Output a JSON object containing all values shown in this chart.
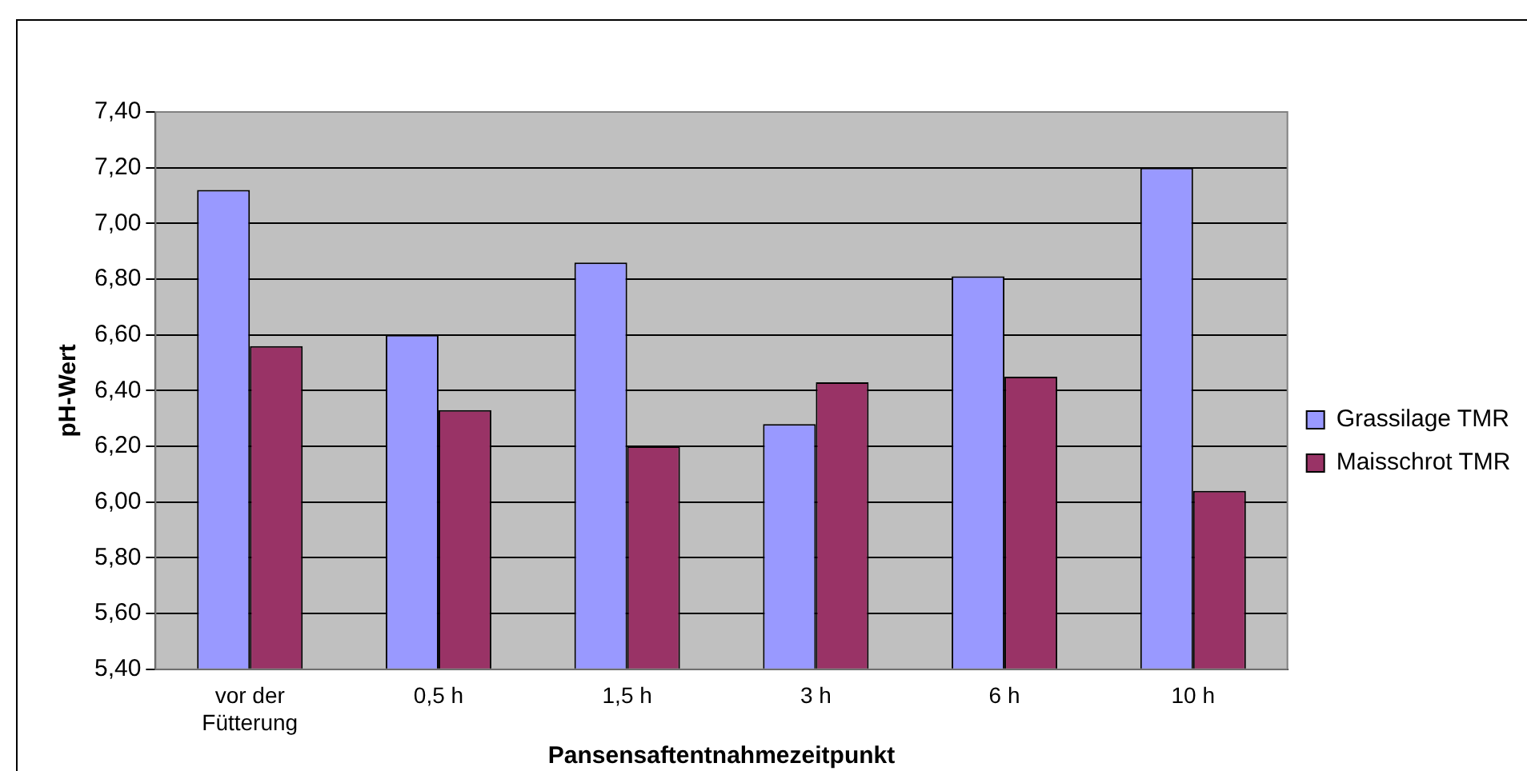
{
  "chart_data": {
    "type": "bar",
    "xlabel": "Pansensaftentnahmezeitpunkt",
    "ylabel": "pH-Wert",
    "categories": [
      "vor der Fütterung",
      "0,5 h",
      "1,5 h",
      "3 h",
      "6 h",
      "10 h"
    ],
    "series": [
      {
        "name": "Grassilage TMR",
        "color": "#9999ff",
        "values": [
          7.12,
          6.6,
          6.86,
          6.28,
          6.81,
          7.2
        ]
      },
      {
        "name": "Maisschrot TMR",
        "color": "#993366",
        "values": [
          6.56,
          6.33,
          6.2,
          6.43,
          6.45,
          6.04
        ]
      }
    ],
    "ylim": [
      5.4,
      7.4
    ],
    "yticks": [
      {
        "value": 5.4,
        "label": "5,40"
      },
      {
        "value": 5.6,
        "label": "5,60"
      },
      {
        "value": 5.8,
        "label": "5,80"
      },
      {
        "value": 6.0,
        "label": "6,00"
      },
      {
        "value": 6.2,
        "label": "6,20"
      },
      {
        "value": 6.4,
        "label": "6,40"
      },
      {
        "value": 6.6,
        "label": "6,60"
      },
      {
        "value": 6.8,
        "label": "6,80"
      },
      {
        "value": 7.0,
        "label": "7,00"
      },
      {
        "value": 7.2,
        "label": "7,20"
      },
      {
        "value": 7.4,
        "label": "7,40"
      }
    ],
    "grid": "y",
    "legend": "right"
  }
}
